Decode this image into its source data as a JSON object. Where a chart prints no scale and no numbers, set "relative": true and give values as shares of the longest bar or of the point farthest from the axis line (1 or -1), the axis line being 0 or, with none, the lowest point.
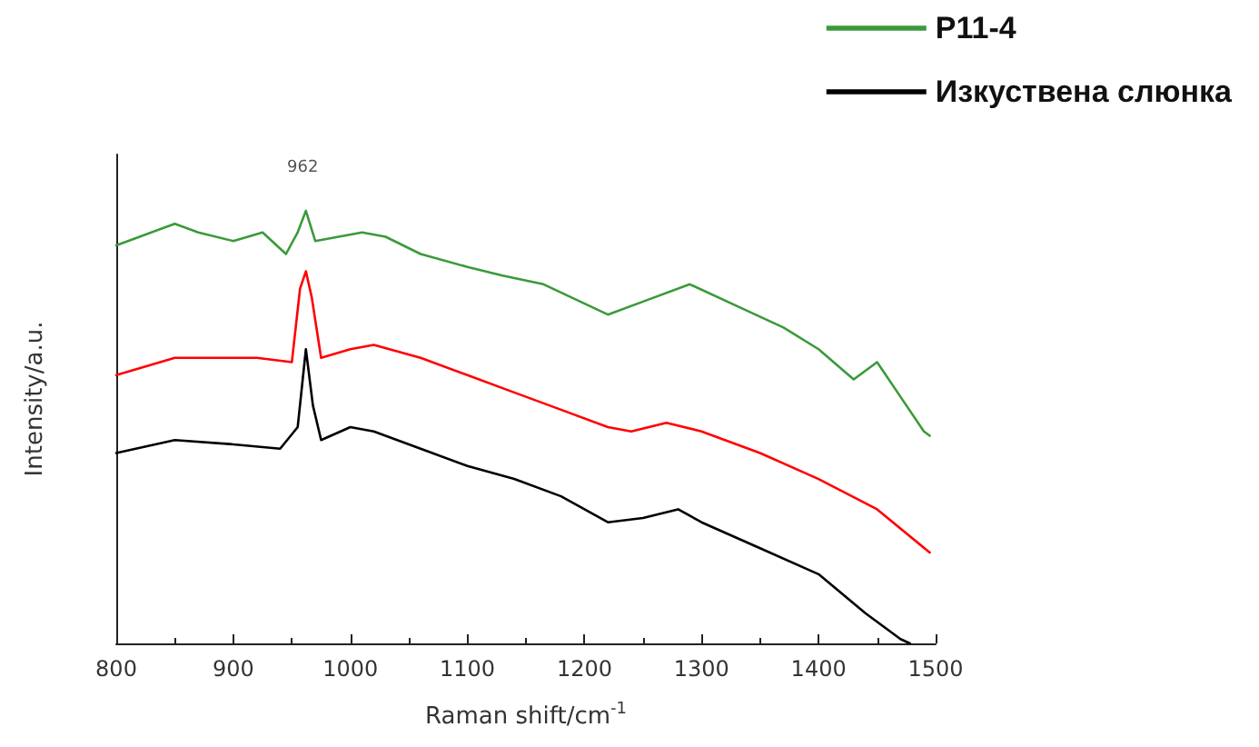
{
  "chart_data": {
    "type": "line",
    "relative": true,
    "xlabel": "Raman shift/cm$^{-1}$",
    "ylabel": "Intensity/a.u.",
    "xlim": [
      800,
      1500
    ],
    "xticks": [
      800,
      900,
      1000,
      1100,
      1200,
      1300,
      1400,
      1500
    ],
    "grid": false,
    "legend": "top right",
    "marker": "none",
    "line_style": "solid",
    "annotations": [
      "962"
    ],
    "series": [
      {
        "name": "P11-4",
        "color": "#3a9a3a",
        "x": [
          800,
          820,
          850,
          870,
          900,
          925,
          945,
          955,
          962,
          970,
          990,
          1010,
          1030,
          1060,
          1100,
          1130,
          1165,
          1220,
          1250,
          1290,
          1330,
          1370,
          1400,
          1430,
          1450,
          1470,
          1490,
          1495
        ],
        "values": [
          0.92,
          0.94,
          0.97,
          0.95,
          0.93,
          0.95,
          0.9,
          0.95,
          1.0,
          0.93,
          0.94,
          0.95,
          0.94,
          0.9,
          0.87,
          0.85,
          0.83,
          0.76,
          0.79,
          0.83,
          0.78,
          0.73,
          0.68,
          0.61,
          0.65,
          0.57,
          0.49,
          0.48
        ]
      },
      {
        "color": "#ff0000",
        "x": [
          800,
          850,
          880,
          920,
          950,
          957,
          962,
          967,
          975,
          1000,
          1020,
          1060,
          1100,
          1140,
          1180,
          1220,
          1240,
          1270,
          1300,
          1350,
          1400,
          1450,
          1495
        ],
        "values": [
          0.62,
          0.66,
          0.66,
          0.66,
          0.65,
          0.82,
          0.86,
          0.8,
          0.66,
          0.68,
          0.69,
          0.66,
          0.62,
          0.58,
          0.54,
          0.5,
          0.49,
          0.51,
          0.49,
          0.44,
          0.38,
          0.31,
          0.21
        ]
      },
      {
        "name": "Изкуствена слюнка",
        "color": "#000000",
        "x": [
          800,
          850,
          900,
          940,
          955,
          962,
          968,
          975,
          1000,
          1020,
          1060,
          1100,
          1140,
          1180,
          1220,
          1250,
          1280,
          1300,
          1350,
          1400,
          1440,
          1470,
          1478
        ],
        "values": [
          0.44,
          0.47,
          0.46,
          0.45,
          0.5,
          0.68,
          0.55,
          0.47,
          0.5,
          0.49,
          0.45,
          0.41,
          0.38,
          0.34,
          0.28,
          0.29,
          0.31,
          0.28,
          0.22,
          0.16,
          0.07,
          0.01,
          0.0
        ]
      }
    ]
  }
}
